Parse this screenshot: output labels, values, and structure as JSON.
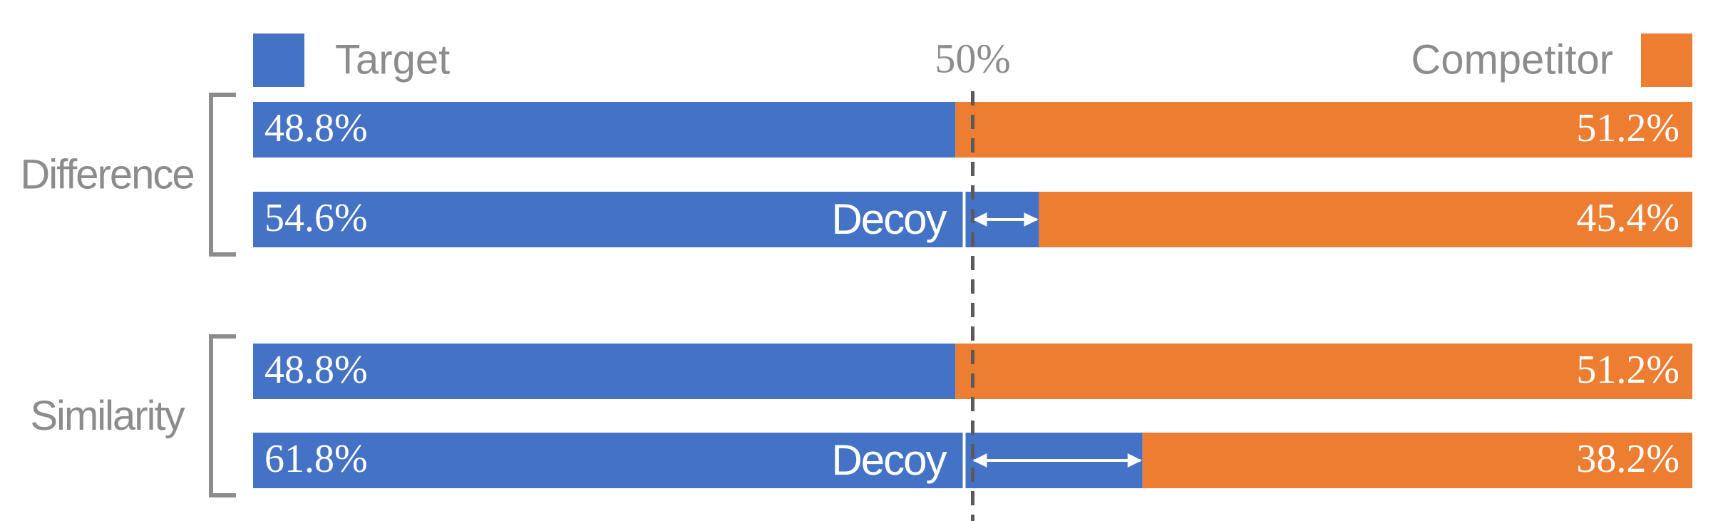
{
  "chart_data": {
    "type": "stacked-bar",
    "orientation": "horizontal",
    "categories": [
      null,
      null,
      null,
      null
    ],
    "groups": [
      "Difference",
      "Similarity"
    ],
    "bar_annotations": [
      null,
      "Decoy",
      null,
      "Decoy"
    ],
    "series": [
      {
        "name": "Target",
        "color": "#4472c4",
        "values": [
          48.8,
          54.6,
          48.8,
          61.8
        ],
        "value_labels": [
          "48.8%",
          "54.6%",
          "48.8%",
          "61.8%"
        ]
      },
      {
        "name": "Competitor",
        "color": "#ed7d31",
        "values": [
          51.2,
          45.4,
          51.2,
          38.2
        ],
        "value_labels": [
          "51.2%",
          "45.4%",
          "51.2%",
          "38.2%"
        ]
      }
    ],
    "xlim": [
      0,
      100
    ],
    "reference_line": {
      "value": 50,
      "label": "50%"
    },
    "legend": "top"
  }
}
